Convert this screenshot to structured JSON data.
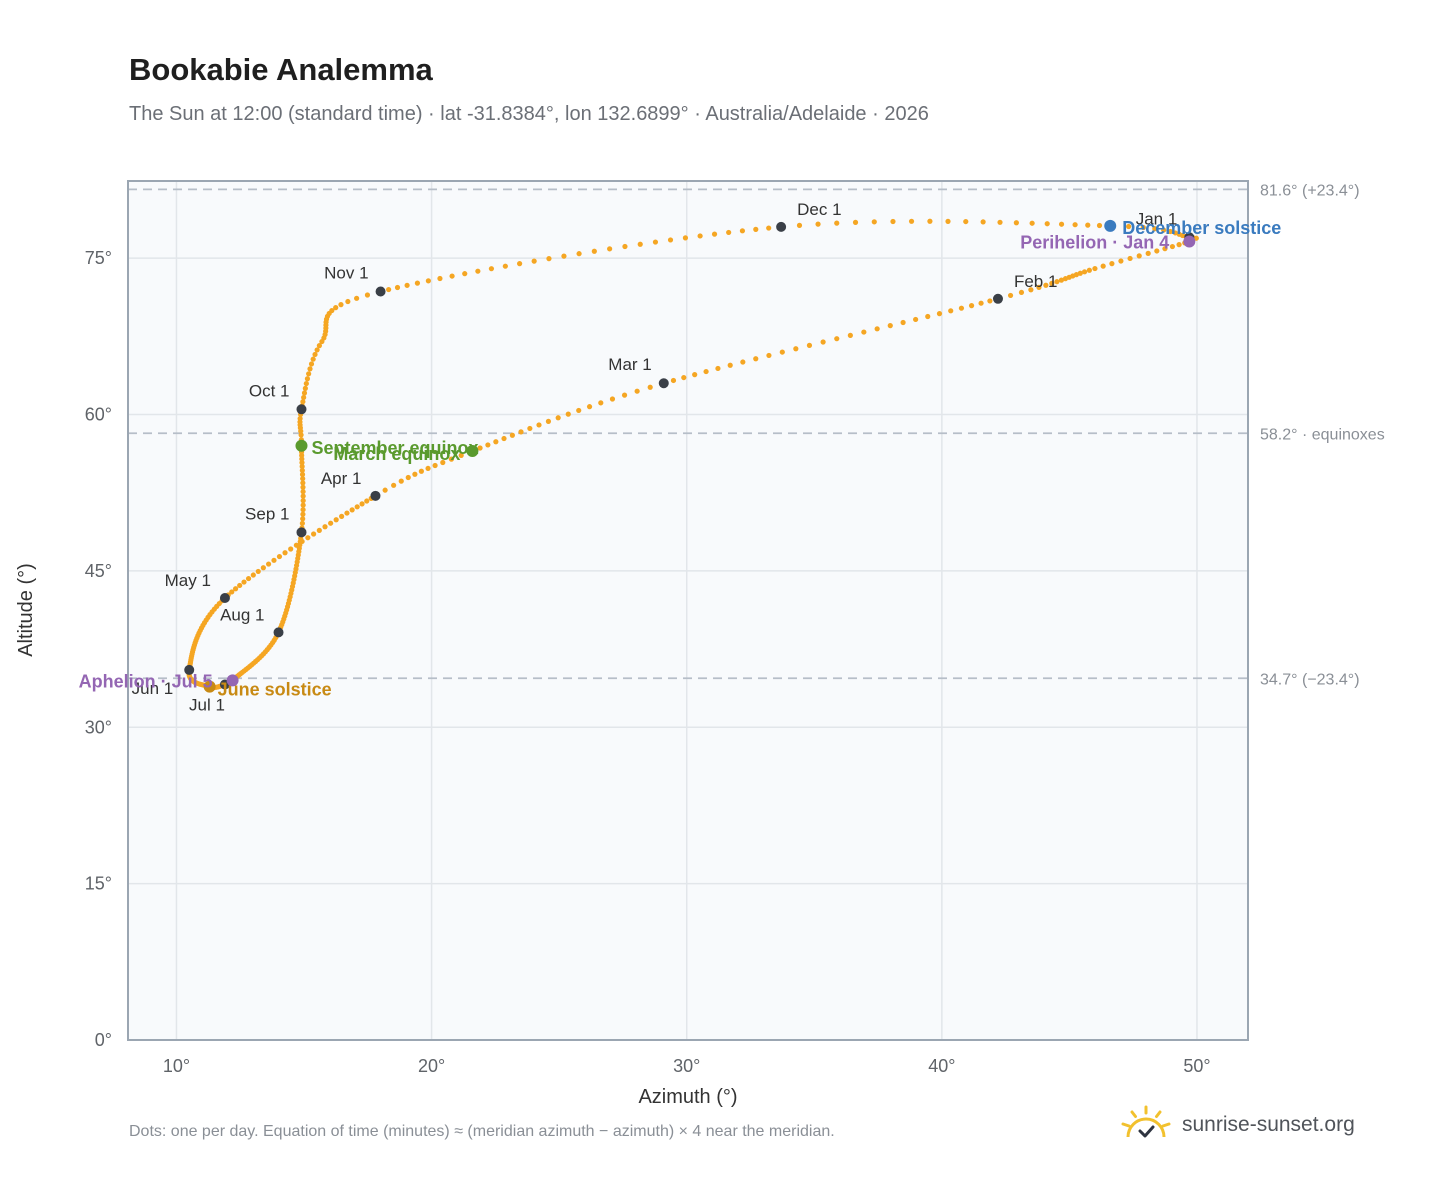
{
  "title": "Bookabie Analemma",
  "subtitle": "The Sun at 12:00 (standard time) · lat -31.8384°, lon 132.6899° · Australia/Adelaide · 2026",
  "footnote": "Dots: one per day. Equation of time (minutes) ≈ (meridian azimuth − azimuth) × 4 near the meridian.",
  "brand": {
    "name": "sunrise-sunset.org",
    "icon": "sun-logo-icon"
  },
  "colors": {
    "analemma": "#f5a623",
    "month_marker": "#3a3f47",
    "equinox": "#5a9a2e",
    "december_solstice": "#3a7bbf",
    "june_solstice": "#c88a14",
    "apsis": "#9466b3",
    "plot_bg": "#f8fafc",
    "grid": "#e2e6ea",
    "reference_line": "#b6bec8",
    "frame": "#9ba6b2"
  },
  "chart_data": {
    "type": "scatter",
    "xlabel": "Azimuth (°)",
    "ylabel": "Altitude (°)",
    "xlim": [
      8.1,
      52.0
    ],
    "ylim": [
      0,
      82.4
    ],
    "x_ticks": [
      {
        "value": 10,
        "label": "10°"
      },
      {
        "value": 20,
        "label": "20°"
      },
      {
        "value": 30,
        "label": "30°"
      },
      {
        "value": 40,
        "label": "40°"
      },
      {
        "value": 50,
        "label": "50°"
      }
    ],
    "y_ticks": [
      {
        "value": 0,
        "label": "0°"
      },
      {
        "value": 15,
        "label": "15°"
      },
      {
        "value": 30,
        "label": "30°"
      },
      {
        "value": 45,
        "label": "45°"
      },
      {
        "value": 60,
        "label": "60°"
      },
      {
        "value": 75,
        "label": "75°"
      }
    ],
    "grid": true,
    "reference_lines": [
      {
        "y": 81.6,
        "label": "81.6° (+23.4°)"
      },
      {
        "y": 58.2,
        "label": "58.2° · equinoxes"
      },
      {
        "y": 34.7,
        "label": "34.7° (−23.4°)"
      }
    ],
    "analemma_series": {
      "name": "",
      "anchors": [
        {
          "date": "2026-01-01",
          "x": 49.7,
          "y": 77.0
        },
        {
          "date": "2026-01-04",
          "x": 49.7,
          "y": 76.6
        },
        {
          "date": "2026-01-16",
          "x": 46.0,
          "y": 74.0
        },
        {
          "date": "2026-02-01",
          "x": 42.2,
          "y": 71.1
        },
        {
          "date": "2026-03-01",
          "x": 29.1,
          "y": 63.0
        },
        {
          "date": "2026-03-20",
          "x": 21.6,
          "y": 56.5
        },
        {
          "date": "2026-04-01",
          "x": 17.8,
          "y": 52.2
        },
        {
          "date": "2026-05-01",
          "x": 11.9,
          "y": 42.4
        },
        {
          "date": "2026-06-01",
          "x": 10.5,
          "y": 35.5
        },
        {
          "date": "2026-06-21",
          "x": 11.3,
          "y": 33.9
        },
        {
          "date": "2026-07-01",
          "x": 11.9,
          "y": 34.1
        },
        {
          "date": "2026-07-05",
          "x": 12.2,
          "y": 34.5
        },
        {
          "date": "2026-08-01",
          "x": 14.0,
          "y": 39.1
        },
        {
          "date": "2026-09-01",
          "x": 14.9,
          "y": 48.7
        },
        {
          "date": "2026-09-22",
          "x": 14.9,
          "y": 57.0
        },
        {
          "date": "2026-10-01",
          "x": 14.9,
          "y": 60.5
        },
        {
          "date": "2026-10-16",
          "x": 15.7,
          "y": 67.0
        },
        {
          "date": "2026-11-01",
          "x": 18.0,
          "y": 71.8
        },
        {
          "date": "2026-12-01",
          "x": 33.7,
          "y": 78.0
        },
        {
          "date": "2026-12-21",
          "x": 46.6,
          "y": 78.1
        },
        {
          "date": "2026-12-31",
          "x": 49.7,
          "y": 77.0
        }
      ]
    },
    "month_markers": [
      {
        "label": "Jan 1",
        "x": 49.7,
        "y": 77.0,
        "pos": "above-left"
      },
      {
        "label": "Feb 1",
        "x": 42.2,
        "y": 71.1,
        "pos": "above-right"
      },
      {
        "label": "Mar 1",
        "x": 29.1,
        "y": 63.0,
        "pos": "above-left"
      },
      {
        "label": "Apr 1",
        "x": 17.8,
        "y": 52.2,
        "pos": "below-left"
      },
      {
        "label": "May 1",
        "x": 11.9,
        "y": 42.4,
        "pos": "below-left"
      },
      {
        "label": "Jun 1",
        "x": 10.5,
        "y": 35.5,
        "pos": "below"
      },
      {
        "label": "Jul 1",
        "x": 11.9,
        "y": 34.1,
        "pos": "below-left2"
      },
      {
        "label": "Aug 1",
        "x": 14.0,
        "y": 39.1,
        "pos": "below-left"
      },
      {
        "label": "Sep 1",
        "x": 14.9,
        "y": 48.7,
        "pos": "above-left"
      },
      {
        "label": "Oct 1",
        "x": 14.9,
        "y": 60.5,
        "pos": "above-left"
      },
      {
        "label": "Nov 1",
        "x": 18.0,
        "y": 71.8,
        "pos": "above-left"
      },
      {
        "label": "Dec 1",
        "x": 33.7,
        "y": 78.0,
        "pos": "above-right"
      }
    ],
    "events": [
      {
        "label": "March equinox",
        "x": 21.6,
        "y": 56.5,
        "color_key": "equinox",
        "anchor": "end",
        "dx": -12,
        "dy": 9
      },
      {
        "label": "September equinox",
        "x": 14.9,
        "y": 57.0,
        "color_key": "equinox",
        "anchor": "start",
        "dx": 10,
        "dy": 8
      },
      {
        "label": "June solstice",
        "x": 11.3,
        "y": 33.9,
        "color_key": "june_solstice",
        "anchor": "start",
        "dx": 8,
        "dy": 9
      },
      {
        "label": "December solstice",
        "x": 46.6,
        "y": 78.1,
        "color_key": "december_solstice",
        "anchor": "start",
        "dx": 12,
        "dy": 8
      },
      {
        "label": "Perihelion · Jan 4",
        "x": 49.7,
        "y": 76.6,
        "color_key": "apsis",
        "anchor": "end",
        "dx": -20,
        "dy": 7
      },
      {
        "label": "Aphelion · Jul 5",
        "x": 12.2,
        "y": 34.5,
        "color_key": "apsis",
        "anchor": "end",
        "dx": -20,
        "dy": 7
      }
    ]
  }
}
